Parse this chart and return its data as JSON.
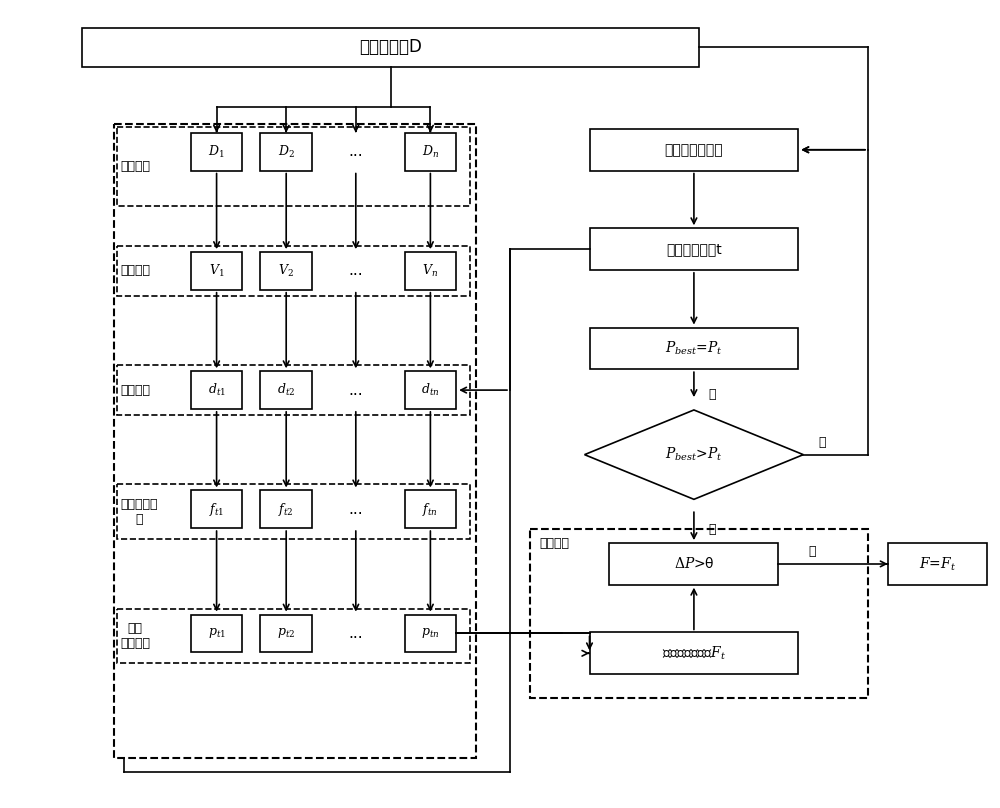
{
  "title": "样本训练集D",
  "bg_color": "#ffffff",
  "figsize": [
    10.0,
    8.08
  ],
  "dpi": 100,
  "row_D_labels": [
    "$D_1$",
    "$D_2$",
    "...",
    "$D_n$"
  ],
  "row_V_labels": [
    "$V_1$",
    "$V_2$",
    "...",
    "$V_n$"
  ],
  "row_d_labels": [
    "$d_{t1}$",
    "$d_{t2}$",
    "...",
    "$d_{tn}$"
  ],
  "row_f_labels": [
    "$f_{t1}$",
    "$f_{t2}$",
    "...",
    "$f_{tn}$"
  ],
  "row_p_labels": [
    "$p_{t1}$",
    "$p_{t2}$",
    "...",
    "$p_{tn}$"
  ],
  "sec_labels": [
    "样本划分",
    "特征选择",
    "均衡采样",
    "训练弱分类\n器",
    "计算\n分类效果"
  ],
  "right_box1": "进入下一轮迭代",
  "right_box2": "更新采样概率t",
  "right_box3": "$P_{best}$=$P_t$",
  "diamond_label": "$P_{best}$>$P_t$",
  "selection_label": "选择过程",
  "delta_label": "$\\Delta P$>θ",
  "generate_label": "生成集成分类器$F_t$",
  "output_label": "$F$=$F_t$",
  "yes_label": "是",
  "no_label": "否"
}
